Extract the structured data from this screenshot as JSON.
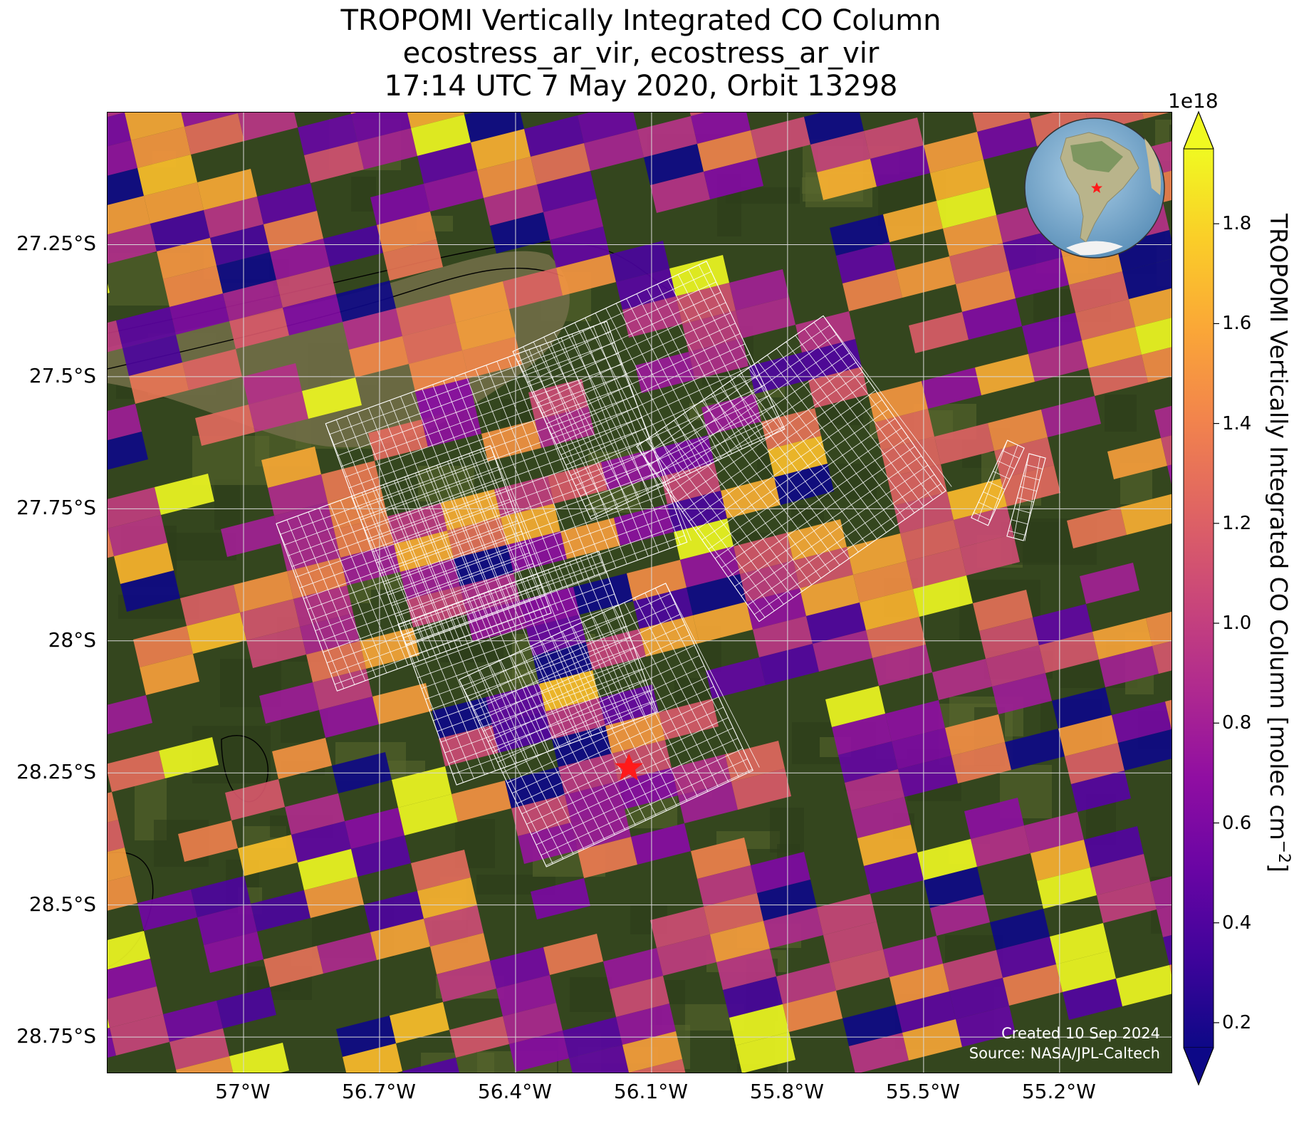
{
  "title": {
    "line1": "TROPOMI Vertically Integrated CO Column",
    "line2": "ecostress_ar_vir, ecostress_ar_vir",
    "line3": "17:14 UTC 7 May 2020, Orbit 13298"
  },
  "map": {
    "extent": {
      "lon_min": -57.3,
      "lon_max": -54.95,
      "lat_max": -27.0,
      "lat_min": -28.82
    },
    "lat_ticks": [
      {
        "value": -27.25,
        "label": "27.25°S"
      },
      {
        "value": -27.5,
        "label": "27.5°S"
      },
      {
        "value": -27.75,
        "label": "27.75°S"
      },
      {
        "value": -28.0,
        "label": "28°S"
      },
      {
        "value": -28.25,
        "label": "28.25°S"
      },
      {
        "value": -28.5,
        "label": "28.5°S"
      },
      {
        "value": -28.75,
        "label": "28.75°S"
      }
    ],
    "lon_ticks": [
      {
        "value": -57.0,
        "label": "57°W"
      },
      {
        "value": -56.7,
        "label": "56.7°W"
      },
      {
        "value": -56.4,
        "label": "56.4°W"
      },
      {
        "value": -56.1,
        "label": "56.1°W"
      },
      {
        "value": -55.8,
        "label": "55.8°W"
      },
      {
        "value": -55.5,
        "label": "55.5°W"
      },
      {
        "value": -55.2,
        "label": "55.2°W"
      }
    ],
    "target_marker": {
      "lon": -56.15,
      "lat": -28.24,
      "color": "#ff1a1a"
    },
    "background": "satellite imagery (Paraná river floodplain, forest and farmland)",
    "colors": {
      "land_dark": "#34461e",
      "land_light": "#59672e",
      "river": "#6e6b45",
      "grid": "#d8d8d8"
    }
  },
  "credits": {
    "line1": "Created 10 Sep 2024",
    "line2": "Source: NASA/JPL-Caltech"
  },
  "colorbar": {
    "label_main": "TROPOMI Vertically Integrated CO Column [molec cm",
    "label_sup": "−2",
    "label_close": "]",
    "exponent": "1e18",
    "colormap": "plasma",
    "min": 0.15,
    "max": 1.95,
    "extend": "both",
    "ticks": [
      "0.2",
      "0.4",
      "0.6",
      "0.8",
      "1.0",
      "1.2",
      "1.4",
      "1.6",
      "1.8"
    ]
  },
  "inset": {
    "name": "globe-locator",
    "marker": "red star over South America"
  }
}
